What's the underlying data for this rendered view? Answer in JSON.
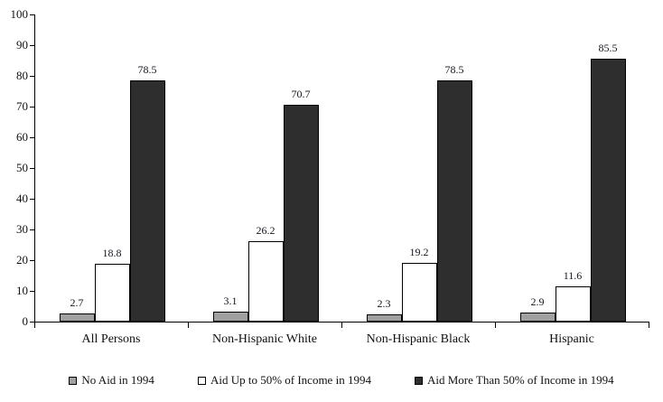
{
  "chart_data": {
    "type": "bar",
    "title": "",
    "xlabel": "",
    "ylabel": "",
    "categories": [
      "All Persons",
      "Non-Hispanic White",
      "Non-Hispanic Black",
      "Hispanic"
    ],
    "series": [
      {
        "name": "No Aid in 1994",
        "values": [
          2.7,
          3.1,
          2.3,
          2.9
        ],
        "color": "#a0a0a0"
      },
      {
        "name": "Aid Up to 50% of Income in 1994",
        "values": [
          18.8,
          26.2,
          19.2,
          11.6
        ],
        "color": "#ffffff"
      },
      {
        "name": "Aid More Than 50% of Income in 1994",
        "values": [
          78.5,
          70.7,
          78.5,
          85.5
        ],
        "color": "#2e2e2e"
      }
    ],
    "ylim": [
      0,
      100
    ],
    "y_ticks": [
      0,
      10,
      20,
      30,
      40,
      50,
      60,
      70,
      80,
      90,
      100
    ],
    "grid": false,
    "value_labels": true,
    "legend_position": "bottom",
    "bar_border_color": "#000000",
    "axis_color": "#000000"
  }
}
